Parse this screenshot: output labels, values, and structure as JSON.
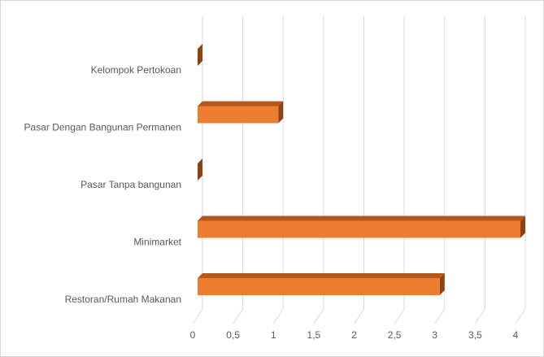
{
  "chart_data": {
    "type": "bar3d_horizontal",
    "categories": [
      "Kelompok Pertokoan",
      "Pasar Dengan Bangunan Permanen",
      "Pasar Tanpa bangunan",
      "Minimarket",
      "Restoran/Rumah Makanan"
    ],
    "values": [
      0,
      1,
      0,
      4,
      3
    ],
    "color": "#ed7d31",
    "xlim": [
      0,
      4
    ],
    "xticks": [
      0,
      {
        "value": 0.5,
        "label": "0,5"
      },
      1,
      {
        "value": 1.5,
        "label": "1,5"
      },
      2,
      {
        "value": 2.5,
        "label": "2,5"
      },
      3,
      {
        "value": 3.5,
        "label": "3,5"
      },
      4
    ],
    "grid": true
  }
}
